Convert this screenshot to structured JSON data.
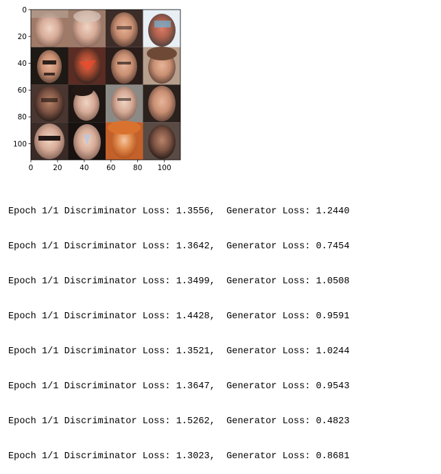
{
  "figure": {
    "image_grid": {
      "rows": 4,
      "cols": 4,
      "content": "generated face samples"
    },
    "x_ticks": [
      "0",
      "20",
      "40",
      "60",
      "80",
      "100"
    ],
    "y_ticks": [
      "0",
      "20",
      "40",
      "60",
      "80",
      "100"
    ],
    "x_tick_values": [
      0,
      20,
      40,
      60,
      80,
      100
    ],
    "y_tick_values": [
      0,
      20,
      40,
      60,
      80,
      100
    ],
    "xlim": [
      0,
      112
    ],
    "ylim": [
      112,
      0
    ]
  },
  "log": {
    "lines": [
      "Epoch 1/1 Discriminator Loss: 1.3556,  Generator Loss: 1.2440",
      "Epoch 1/1 Discriminator Loss: 1.3642,  Generator Loss: 0.7454",
      "Epoch 1/1 Discriminator Loss: 1.3499,  Generator Loss: 1.0508",
      "Epoch 1/1 Discriminator Loss: 1.4428,  Generator Loss: 0.9591",
      "Epoch 1/1 Discriminator Loss: 1.3521,  Generator Loss: 1.0244",
      "Epoch 1/1 Discriminator Loss: 1.3647,  Generator Loss: 0.9543",
      "Epoch 1/1 Discriminator Loss: 1.5262,  Generator Loss: 0.4823",
      "Epoch 1/1 Discriminator Loss: 1.3023,  Generator Loss: 0.8681"
    ]
  }
}
